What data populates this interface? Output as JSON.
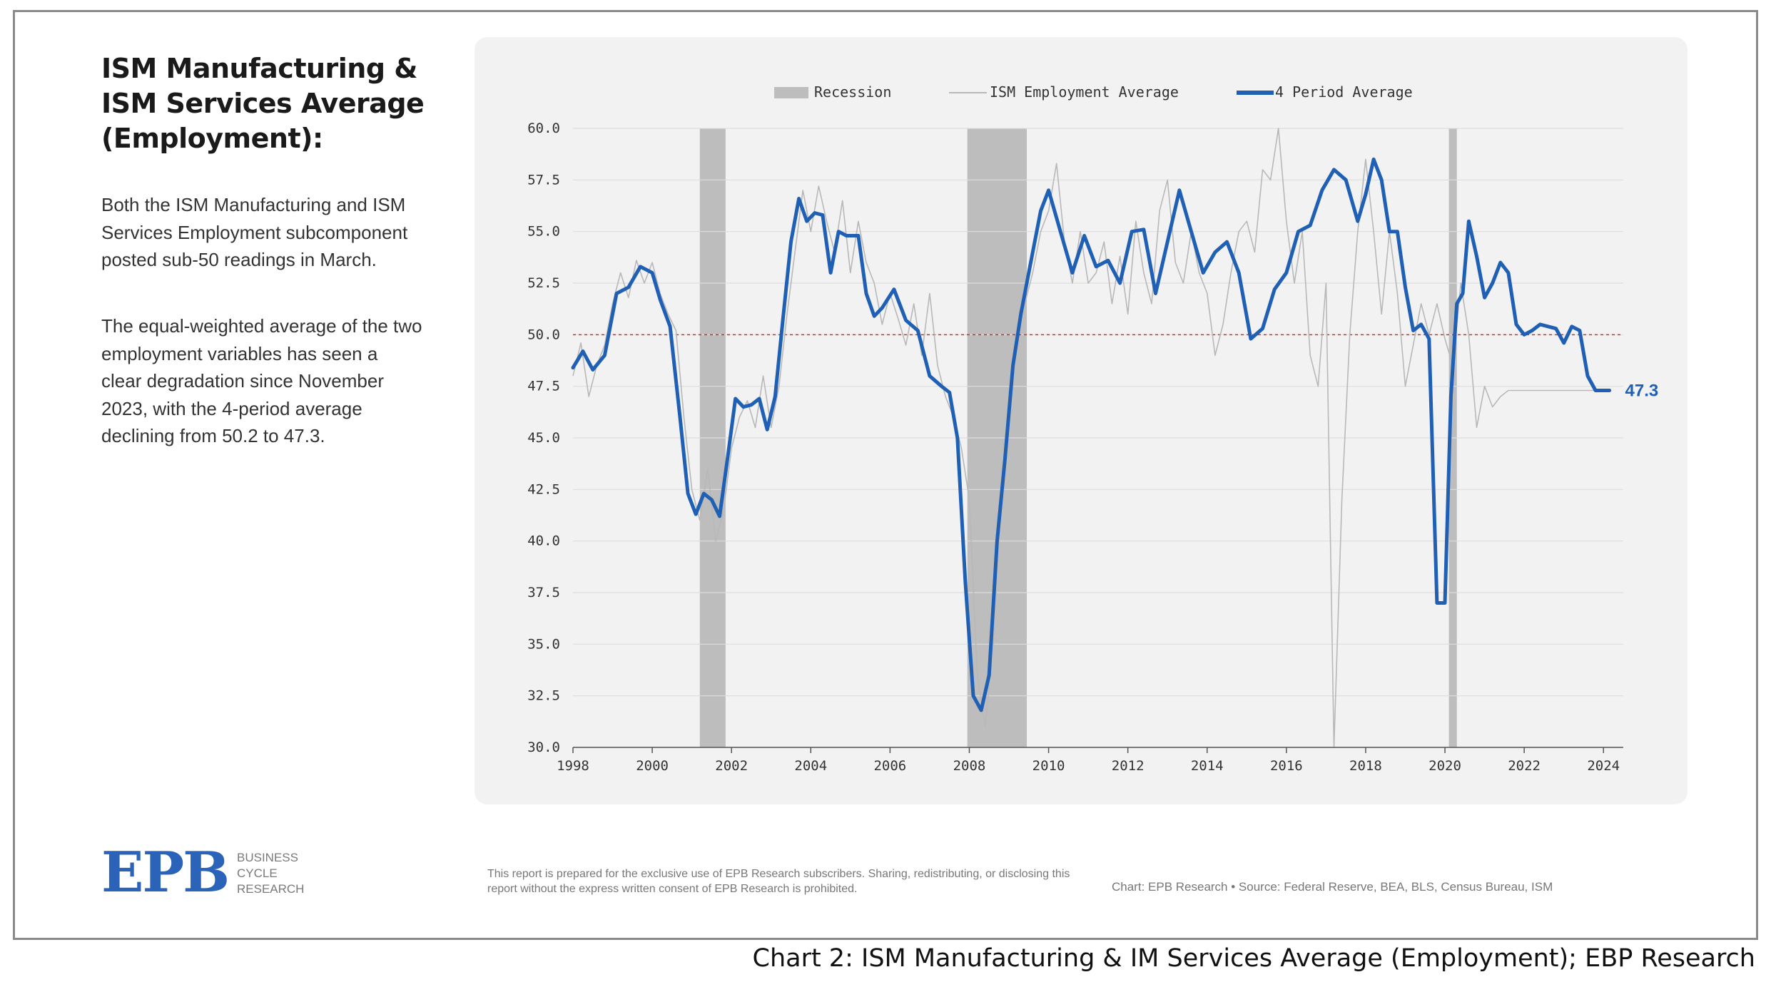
{
  "sidebar": {
    "heading": "ISM Manufacturing & ISM Services Average (Employment):",
    "paragraph1": "Both the ISM Manufacturing and ISM Services Employment subcomponent posted sub-50 readings in March.",
    "paragraph2": "The equal-weighted average of the two employment variables has seen a clear degradation since November 2023, with the 4-period average declining from 50.2 to 47.3."
  },
  "logo": {
    "mark": "EPB",
    "line1": "Business",
    "line2": "Cycle",
    "line3": "Research"
  },
  "footer": {
    "disclaimer": "This report is prepared for the exclusive use of EPB Research subscribers. Sharing, redistributing, or disclosing this report without the express written consent of EPB Research is prohibited.",
    "credits": "Chart: EPB Research  •  Source: Federal Reserve, BEA, BLS, Census Bureau, ISM"
  },
  "caption": "Chart 2: ISM Manufacturing & IM Services Average (Employment); EBP Research",
  "colors": {
    "avg_line": "#1f5fb4",
    "raw_line": "#b8b8b8",
    "recession": "#bdbdbd",
    "threshold": "#c0392b",
    "panel": "#f2f2f2"
  },
  "chart_data": {
    "type": "line",
    "title": "",
    "xlabel": "",
    "ylabel": "",
    "xlim": [
      1998,
      2024.5
    ],
    "ylim": [
      30,
      60
    ],
    "grid": true,
    "legend_position": "top-center",
    "xticks": [
      "1998",
      "2000",
      "2002",
      "2004",
      "2006",
      "2008",
      "2010",
      "2012",
      "2014",
      "2016",
      "2018",
      "2020",
      "2022",
      "2024"
    ],
    "yticks": [
      "30.0",
      "32.5",
      "35.0",
      "37.5",
      "40.0",
      "42.5",
      "45.0",
      "47.5",
      "50.0",
      "52.5",
      "55.0",
      "57.5",
      "60.0"
    ],
    "legend": [
      {
        "label": "Recession",
        "kind": "band"
      },
      {
        "label": "ISM Employment Average",
        "kind": "thin-line"
      },
      {
        "label": "4 Period Average",
        "kind": "thick-line"
      }
    ],
    "threshold": 50,
    "recessions": [
      [
        2001.2,
        2001.85
      ],
      [
        2007.95,
        2009.45
      ],
      [
        2020.1,
        2020.3
      ]
    ],
    "end_label": "47.3",
    "series": [
      {
        "name": "4 Period Average",
        "x": [
          1998.0,
          1998.25,
          1998.5,
          1998.8,
          1999.1,
          1999.4,
          1999.7,
          2000.0,
          2000.2,
          2000.45,
          2000.7,
          2000.9,
          2001.1,
          2001.3,
          2001.5,
          2001.7,
          2001.9,
          2002.1,
          2002.3,
          2002.5,
          2002.7,
          2002.9,
          2003.1,
          2003.3,
          2003.5,
          2003.7,
          2003.9,
          2004.1,
          2004.3,
          2004.5,
          2004.7,
          2004.9,
          2005.2,
          2005.4,
          2005.6,
          2005.8,
          2006.1,
          2006.4,
          2006.7,
          2007.0,
          2007.3,
          2007.5,
          2007.7,
          2007.9,
          2008.1,
          2008.3,
          2008.5,
          2008.7,
          2008.9,
          2009.1,
          2009.3,
          2009.45,
          2009.6,
          2009.8,
          2010.0,
          2010.3,
          2010.6,
          2010.9,
          2011.2,
          2011.5,
          2011.8,
          2012.1,
          2012.4,
          2012.7,
          2013.0,
          2013.3,
          2013.6,
          2013.9,
          2014.2,
          2014.5,
          2014.8,
          2015.1,
          2015.4,
          2015.7,
          2016.0,
          2016.3,
          2016.6,
          2016.9,
          2017.2,
          2017.5,
          2017.8,
          2018.0,
          2018.2,
          2018.4,
          2018.6,
          2018.8,
          2019.0,
          2019.2,
          2019.4,
          2019.6,
          2019.8,
          2020.0,
          2020.15,
          2020.3,
          2020.45,
          2020.6,
          2020.8,
          2021.0,
          2021.2,
          2021.4,
          2021.6,
          2021.8,
          2022.0,
          2022.2,
          2022.4,
          2022.6,
          2022.8,
          2023.0,
          2023.2,
          2023.4,
          2023.6,
          2023.8,
          2024.0,
          2024.15
        ],
        "values": [
          48.4,
          49.2,
          48.3,
          49.0,
          52.0,
          52.3,
          53.3,
          53.0,
          51.7,
          50.4,
          46.0,
          42.3,
          41.3,
          42.3,
          42.0,
          41.2,
          44.0,
          46.9,
          46.5,
          46.6,
          46.9,
          45.4,
          47.0,
          50.8,
          54.5,
          56.6,
          55.5,
          55.9,
          55.8,
          53.0,
          55.0,
          54.8,
          54.8,
          52.0,
          50.9,
          51.3,
          52.2,
          50.7,
          50.2,
          48.0,
          47.5,
          47.2,
          45.0,
          38.0,
          32.5,
          31.8,
          33.5,
          40.0,
          44.0,
          48.5,
          51.0,
          52.5,
          54.0,
          56.0,
          57.0,
          55.0,
          53.0,
          54.8,
          53.3,
          53.6,
          52.5,
          55.0,
          55.1,
          52.0,
          54.5,
          57.0,
          55.0,
          53.0,
          54.0,
          54.5,
          53.0,
          49.8,
          50.3,
          52.2,
          53.0,
          55.0,
          55.3,
          57.0,
          58.0,
          57.5,
          55.5,
          56.8,
          58.5,
          57.5,
          55.0,
          55.0,
          52.3,
          50.2,
          50.5,
          49.8,
          37.0,
          37.0,
          47.0,
          51.5,
          52.0,
          55.5,
          53.8,
          51.8,
          52.5,
          53.5,
          53.0,
          50.5,
          50.0,
          50.2,
          50.5,
          50.4,
          50.3,
          49.6,
          50.4,
          50.2,
          48.0,
          47.3,
          47.3,
          47.3
        ]
      },
      {
        "name": "ISM Employment Average",
        "x": [
          1998.0,
          1998.2,
          1998.4,
          1998.6,
          1998.8,
          1999.0,
          1999.2,
          1999.4,
          1999.6,
          1999.8,
          2000.0,
          2000.2,
          2000.4,
          2000.6,
          2000.8,
          2001.0,
          2001.2,
          2001.4,
          2001.6,
          2001.8,
          2002.0,
          2002.2,
          2002.4,
          2002.6,
          2002.8,
          2003.0,
          2003.2,
          2003.4,
          2003.6,
          2003.8,
          2004.0,
          2004.2,
          2004.4,
          2004.6,
          2004.8,
          2005.0,
          2005.2,
          2005.4,
          2005.6,
          2005.8,
          2006.0,
          2006.2,
          2006.4,
          2006.6,
          2006.8,
          2007.0,
          2007.2,
          2007.4,
          2007.6,
          2007.8,
          2008.0,
          2008.2,
          2008.4,
          2008.6,
          2008.8,
          2009.0,
          2009.2,
          2009.4,
          2009.6,
          2009.8,
          2010.0,
          2010.2,
          2010.4,
          2010.6,
          2010.8,
          2011.0,
          2011.2,
          2011.4,
          2011.6,
          2011.8,
          2012.0,
          2012.2,
          2012.4,
          2012.6,
          2012.8,
          2013.0,
          2013.2,
          2013.4,
          2013.6,
          2013.8,
          2014.0,
          2014.2,
          2014.4,
          2014.6,
          2014.8,
          2015.0,
          2015.2,
          2015.4,
          2015.6,
          2015.8,
          2016.0,
          2016.2,
          2016.4,
          2016.6,
          2016.8,
          2017.0,
          2017.2,
          2017.4,
          2017.6,
          2017.8,
          2018.0,
          2018.2,
          2018.4,
          2018.6,
          2018.8,
          2019.0,
          2019.2,
          2019.4,
          2019.6,
          2019.8,
          2020.0,
          2020.2,
          2020.4,
          2020.6,
          2020.8,
          2021.0,
          2021.2,
          2021.4,
          2021.6,
          2021.8,
          2022.0,
          2022.2,
          2022.4,
          2022.6,
          2022.8,
          2023.0,
          2023.2,
          2023.4,
          2023.6,
          2023.8,
          2024.0,
          2024.15
        ],
        "values": [
          48.0,
          49.6,
          47.0,
          48.5,
          49.5,
          51.5,
          53.0,
          51.8,
          53.6,
          52.5,
          53.5,
          52.0,
          51.0,
          50.2,
          46.0,
          42.5,
          41.0,
          43.5,
          40.0,
          41.5,
          44.5,
          46.0,
          46.8,
          45.5,
          48.0,
          45.5,
          47.5,
          51.0,
          54.0,
          57.0,
          55.0,
          57.2,
          55.5,
          54.0,
          56.5,
          53.0,
          55.5,
          53.5,
          52.5,
          50.5,
          52.0,
          50.8,
          49.5,
          51.5,
          49.0,
          52.0,
          48.5,
          47.0,
          46.0,
          44.5,
          42.0,
          33.5,
          31.0,
          35.0,
          42.0,
          45.5,
          50.0,
          51.5,
          53.0,
          55.0,
          56.0,
          58.3,
          54.5,
          52.5,
          55.0,
          52.5,
          53.0,
          54.5,
          51.5,
          53.8,
          51.0,
          55.5,
          53.0,
          51.5,
          56.0,
          57.5,
          53.5,
          52.5,
          55.0,
          53.0,
          52.0,
          49.0,
          50.5,
          53.0,
          55.0,
          55.5,
          54.0,
          58.0,
          57.5,
          60.0,
          55.5,
          52.5,
          55.0,
          49.0,
          47.5,
          52.5,
          30.0,
          42.0,
          50.0,
          55.0,
          58.5,
          55.0,
          51.0,
          55.0,
          52.0,
          47.5,
          49.5,
          51.5,
          50.0,
          51.5,
          49.8,
          48.5,
          52.5,
          50.0,
          45.5,
          47.5,
          46.5,
          47.0,
          47.3,
          47.3,
          47.3,
          47.3,
          47.3,
          47.3,
          47.3,
          47.3,
          47.3,
          47.3,
          47.3,
          47.3,
          47.3,
          47.3
        ]
      }
    ]
  }
}
